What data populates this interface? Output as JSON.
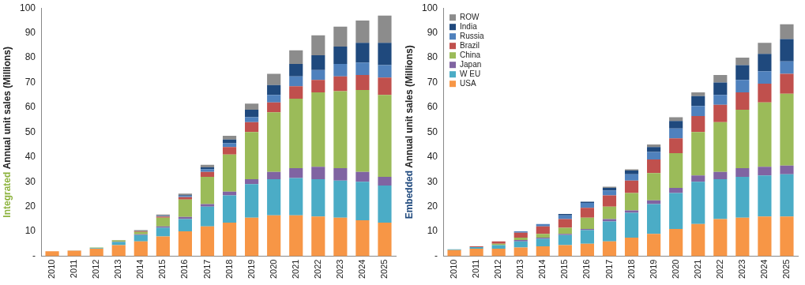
{
  "chart_data": [
    {
      "type": "bar",
      "stacked": true,
      "grid": false,
      "y_label": "Integrated Annual unit sales (Millions)",
      "color": "#8DB33E",
      "categories": [
        "2010",
        "2011",
        "2012",
        "2013",
        "2014",
        "2015",
        "2016",
        "2017",
        "2018",
        "2019",
        "2020",
        "2021",
        "2022",
        "2023",
        "2024",
        "2025"
      ],
      "ylim": [
        0,
        100
      ],
      "yticks": [
        {
          "value": 0,
          "label": "-"
        },
        10,
        20,
        30,
        40,
        50,
        60,
        70,
        80,
        90,
        100
      ],
      "series": [
        {
          "name": "USA",
          "color": "#F79646",
          "values": [
            2,
            2.2,
            3,
            4.5,
            6,
            8,
            10,
            12,
            13.5,
            15.5,
            16.5,
            16.5,
            16,
            15.5,
            14.5,
            13.5
          ]
        },
        {
          "name": "W EU",
          "color": "#4BACC6",
          "values": [
            0,
            0.1,
            0.3,
            1.2,
            2.5,
            3.5,
            5,
            8,
            11,
            13.5,
            14.5,
            15,
            15,
            15,
            15.5,
            15
          ]
        },
        {
          "name": "Japan",
          "color": "#8064A2",
          "values": [
            0,
            0,
            0,
            0.2,
            0.3,
            0.5,
            0.8,
            1,
            1.5,
            2,
            3,
            4,
            5,
            5,
            4,
            3.5
          ]
        },
        {
          "name": "China",
          "color": "#9BBB59",
          "values": [
            0,
            0,
            0.2,
            0.5,
            1,
            3.5,
            7,
            11,
            15,
            19,
            24,
            28,
            30,
            31,
            33,
            33
          ]
        },
        {
          "name": "Brazil",
          "color": "#C0504D",
          "values": [
            0,
            0,
            0,
            0,
            0.2,
            0.5,
            1,
            2,
            3,
            4,
            4,
            5,
            5,
            6,
            6,
            7
          ]
        },
        {
          "name": "Russia",
          "color": "#4F81BD",
          "values": [
            0,
            0,
            0,
            0,
            0,
            0.3,
            0.5,
            1,
            1.5,
            2,
            3,
            4,
            4,
            5,
            5,
            5
          ]
        },
        {
          "name": "India",
          "color": "#1F497D",
          "values": [
            0,
            0,
            0,
            0,
            0,
            0,
            0.3,
            0.8,
            1.5,
            3,
            4,
            5,
            6,
            7,
            8,
            9
          ]
        },
        {
          "name": "ROW",
          "color": "#8C8C8C",
          "values": [
            0,
            0,
            0,
            0.1,
            0.5,
            0.5,
            0.6,
            1,
            1.5,
            2.5,
            4.5,
            5.5,
            8,
            8,
            9,
            11
          ]
        }
      ]
    },
    {
      "type": "bar",
      "stacked": true,
      "grid": false,
      "legend": "top-left",
      "y_label": "Embedded Annual unit sales (Millions)",
      "color": "#1F497D",
      "categories": [
        "2010",
        "2011",
        "2012",
        "2013",
        "2014",
        "2015",
        "2016",
        "2017",
        "2018",
        "2019",
        "2020",
        "2021",
        "2022",
        "2023",
        "2024",
        "2025"
      ],
      "ylim": [
        0,
        100
      ],
      "yticks": [
        {
          "value": 0,
          "label": "-"
        },
        10,
        20,
        30,
        40,
        50,
        60,
        70,
        80,
        90,
        100
      ],
      "series": [
        {
          "name": "USA",
          "color": "#F79646",
          "values": [
            2.5,
            3,
            3,
            3.5,
            4,
            4.5,
            5,
            6,
            7.5,
            9,
            11,
            13,
            15,
            15.5,
            16,
            16
          ]
        },
        {
          "name": "W EU",
          "color": "#4BACC6",
          "values": [
            0.3,
            0.7,
            1.5,
            2.5,
            3,
            4,
            5.5,
            8,
            10,
            12,
            14.5,
            17,
            16,
            16.5,
            16.5,
            17
          ]
        },
        {
          "name": "Japan",
          "color": "#8064A2",
          "values": [
            0,
            0,
            0,
            0.5,
            0.5,
            0.5,
            0.5,
            1,
            1,
            1.5,
            2,
            2.5,
            3,
            3.5,
            3.5,
            3.5
          ]
        },
        {
          "name": "China",
          "color": "#9BBB59",
          "values": [
            0,
            0,
            0.5,
            1,
            1.5,
            2.5,
            4.5,
            5,
            7,
            11,
            14,
            17.5,
            20,
            23.5,
            26,
            29
          ]
        },
        {
          "name": "Brazil",
          "color": "#C0504D",
          "values": [
            0,
            0.3,
            1,
            2,
            3,
            3.5,
            4,
            4.5,
            5,
            5.5,
            6,
            6.5,
            7,
            7,
            7.5,
            8
          ]
        },
        {
          "name": "Russia",
          "color": "#4F81BD",
          "values": [
            0,
            0,
            0,
            0.5,
            1,
            1.5,
            2,
            2,
            2.5,
            3,
            4,
            4,
            4,
            5,
            5,
            5
          ]
        },
        {
          "name": "India",
          "color": "#1F497D",
          "values": [
            0,
            0,
            0,
            0,
            0,
            0.5,
            0.5,
            1,
            1.5,
            2,
            3,
            4,
            5,
            6,
            7,
            9
          ]
        },
        {
          "name": "ROW",
          "color": "#8C8C8C",
          "values": [
            0,
            0,
            0,
            0,
            0,
            0,
            0,
            0.5,
            0.5,
            1,
            1.5,
            1.5,
            3,
            3,
            4.5,
            6
          ]
        }
      ]
    }
  ]
}
